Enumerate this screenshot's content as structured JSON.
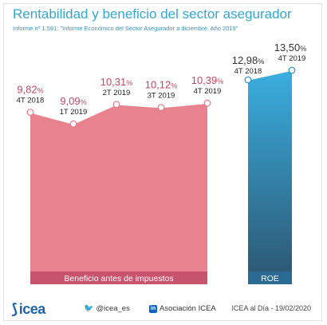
{
  "header": {
    "title": "Rentabilidad y beneficio del sector asegurador",
    "subtitle": "Informe nº 1.591: \"Informe Económico del Sector Asegurador a diciembre. Año 2019\""
  },
  "chart_data": [
    {
      "type": "area",
      "label": "Beneficio antes de impuestos",
      "categories": [
        "4T 2018",
        "1T 2019",
        "2T 2019",
        "3T 2019",
        "4T 2019"
      ],
      "values": [
        9.82,
        9.09,
        10.31,
        10.12,
        10.39
      ],
      "value_labels": [
        "9,82%",
        "9,09%",
        "10,31%",
        "10,12%",
        "10,39%"
      ],
      "ylim": [
        0,
        12
      ],
      "color": "#e9828f",
      "band_color": "#c8536c"
    },
    {
      "type": "area",
      "label": "ROE",
      "categories": [
        "4T 2018",
        "4T 2019"
      ],
      "values": [
        12.98,
        13.5
      ],
      "value_labels": [
        "12,98%",
        "13,50%"
      ],
      "ylim": [
        0,
        14.5
      ],
      "color_top": "#3aaee0",
      "color_bottom": "#2d5a76",
      "band_color": "#2b6b93"
    }
  ],
  "footer": {
    "logo": "icea",
    "twitter": "@icea_es",
    "linkedin": "Asociación ICEA",
    "note": "ICEA al Día - 19/02/2020"
  }
}
